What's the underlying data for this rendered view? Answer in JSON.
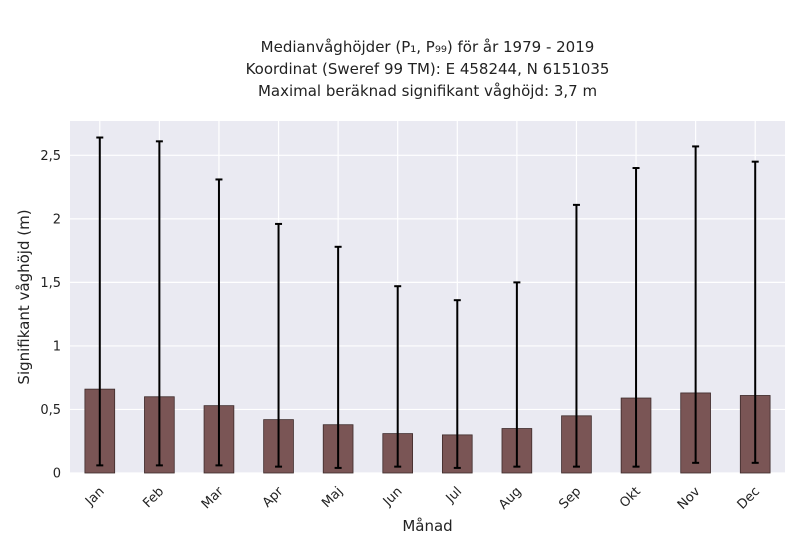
{
  "chart_data": {
    "type": "bar",
    "title_lines": [
      "Medianvåghöjder (P₁, P₉₉) för år 1979 - 2019",
      "Koordinat (Sweref 99 TM): E 458244, N 6151035",
      "Maximal beräknad signifikant våghöjd: 3,7 m"
    ],
    "xlabel": "Månad",
    "ylabel": "Signifikant våghöjd (m)",
    "categories": [
      "Jan",
      "Feb",
      "Mar",
      "Apr",
      "Maj",
      "Jun",
      "Jul",
      "Aug",
      "Sep",
      "Okt",
      "Nov",
      "Dec"
    ],
    "values": [
      0.66,
      0.6,
      0.53,
      0.42,
      0.38,
      0.31,
      0.3,
      0.35,
      0.45,
      0.59,
      0.63,
      0.61
    ],
    "err_low": [
      0.06,
      0.06,
      0.06,
      0.05,
      0.04,
      0.05,
      0.04,
      0.05,
      0.05,
      0.05,
      0.08,
      0.08
    ],
    "err_high": [
      2.64,
      2.61,
      2.31,
      1.96,
      1.78,
      1.47,
      1.36,
      1.5,
      2.11,
      2.4,
      2.57,
      2.45
    ],
    "yticks": [
      0,
      0.5,
      1,
      1.5,
      2,
      2.5
    ],
    "ytick_labels": [
      "0",
      "0,5",
      "1",
      "1,5",
      "2",
      "2,5"
    ],
    "ylim": [
      0,
      2.77
    ],
    "grid": true,
    "bar_color": "#7a5555",
    "bar_edge_color": "#3d2a2a",
    "error_color": "#000000",
    "background_color": "#eaeaf2"
  }
}
